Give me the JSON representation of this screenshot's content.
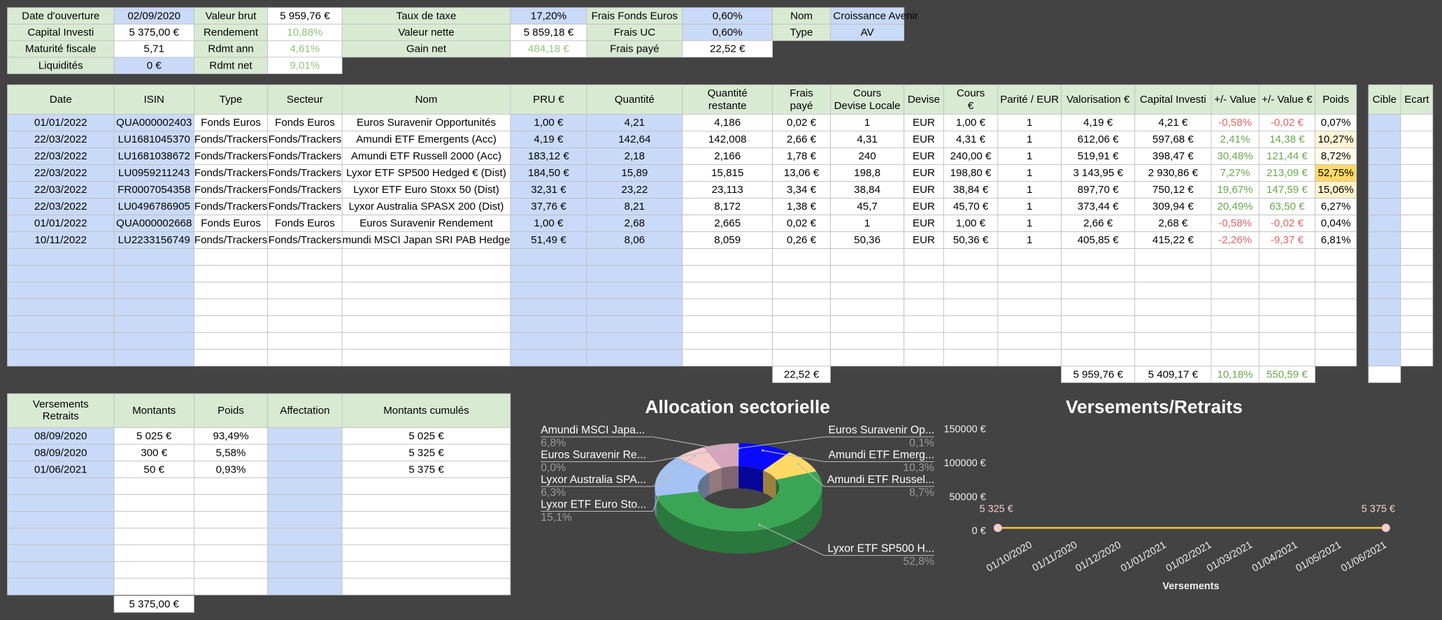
{
  "summary": [
    {
      "labels": [
        "Date d'ouverture",
        "Capital Investi",
        "Maturité fiscale",
        "Liquidités"
      ],
      "values": [
        "02/09/2020",
        "5 375,00 €",
        "5,71",
        "0 €"
      ]
    },
    {
      "labels": [
        "Valeur brut",
        "Rendement",
        "Rdmt ann",
        "Rdmt net"
      ],
      "values": [
        "5 959,76 €",
        "10,88%",
        "4,61%",
        "9,01%"
      ]
    },
    {
      "labels": [
        "Taux de taxe",
        "Valeur nette",
        "Gain net"
      ],
      "values": [
        "17,20%",
        "5 859,18 €",
        "484,18 €"
      ]
    },
    {
      "labels": [
        "Frais Fonds Euros",
        "Frais UC",
        "Frais payé"
      ],
      "values": [
        "0,60%",
        "0,60%",
        "22,52 €"
      ]
    },
    {
      "labels": [
        "Nom",
        "Type"
      ],
      "values": [
        "Croissance Avenir",
        "AV"
      ]
    }
  ],
  "positions": {
    "headers": [
      [
        "Date"
      ],
      [
        "ISIN"
      ],
      [
        "Type"
      ],
      [
        "Secteur"
      ],
      [
        "Nom"
      ],
      [
        "PRU €"
      ],
      [
        "Quantité"
      ],
      [
        "Quantité",
        "restante"
      ],
      [
        "Frais",
        "payé"
      ],
      [
        "Cours",
        "Devise Locale"
      ],
      [
        "Devise"
      ],
      [
        "Cours",
        "€"
      ],
      [
        "Parité / EUR"
      ],
      [
        "Valorisation €"
      ],
      [
        "Capital Investi"
      ],
      [
        "+/- Value"
      ],
      [
        "+/- Value €"
      ],
      [
        "Poids"
      ]
    ],
    "extra_headers": [
      "Cible",
      "Ecart"
    ],
    "rows": [
      [
        "01/01/2022",
        "QUA000002403",
        "Fonds Euros",
        "Fonds Euros",
        "Euros Suravenir Opportunités",
        "1,00 €",
        "4,21",
        "4,186",
        "0,02 €",
        "1",
        "EUR",
        "1,00 €",
        "1",
        "4,19 €",
        "4,21 €",
        "-0,58%",
        "-0,02 €",
        "0,07%"
      ],
      [
        "22/03/2022",
        "LU1681045370",
        "Fonds/Trackers",
        "Fonds/Trackers",
        "Amundi ETF Emergents (Acc)",
        "4,19 €",
        "142,64",
        "142,008",
        "2,66 €",
        "4,31",
        "EUR",
        "4,31 €",
        "1",
        "612,06 €",
        "597,68 €",
        "2,41%",
        "14,38 €",
        "10,27%"
      ],
      [
        "22/03/2022",
        "LU1681038672",
        "Fonds/Trackers",
        "Fonds/Trackers",
        "Amundi ETF Russell 2000 (Acc)",
        "183,12 €",
        "2,18",
        "2,166",
        "1,78 €",
        "240",
        "EUR",
        "240,00 €",
        "1",
        "519,91 €",
        "398,47 €",
        "30,48%",
        "121,44 €",
        "8,72%"
      ],
      [
        "22/03/2022",
        "LU0959211243",
        "Fonds/Trackers",
        "Fonds/Trackers",
        "Lyxor ETF SP500 Hedged € (Dist)",
        "184,50 €",
        "15,89",
        "15,815",
        "13,06 €",
        "198,8",
        "EUR",
        "198,80 €",
        "1",
        "3 143,95 €",
        "2 930,86 €",
        "7,27%",
        "213,09 €",
        "52,75%"
      ],
      [
        "22/03/2022",
        "FR0007054358",
        "Fonds/Trackers",
        "Fonds/Trackers",
        "Lyxor ETF Euro Stoxx 50 (Dist)",
        "32,31 €",
        "23,22",
        "23,113",
        "3,34 €",
        "38,84",
        "EUR",
        "38,84 €",
        "1",
        "897,70 €",
        "750,12 €",
        "19,67%",
        "147,59 €",
        "15,06%"
      ],
      [
        "22/03/2022",
        "LU0496786905",
        "Fonds/Trackers",
        "Fonds/Trackers",
        "Lyxor Australia SPASX 200 (Dist)",
        "37,76 €",
        "8,21",
        "8,172",
        "1,38 €",
        "45,7",
        "EUR",
        "45,70 €",
        "1",
        "373,44 €",
        "309,94 €",
        "20,49%",
        "63,50 €",
        "6,27%"
      ],
      [
        "01/01/2022",
        "QUA000002668",
        "Fonds Euros",
        "Fonds Euros",
        "Euros Suravenir Rendement",
        "1,00 €",
        "2,68",
        "2,665",
        "0,02 €",
        "1",
        "EUR",
        "1,00 €",
        "1",
        "2,66 €",
        "2,68 €",
        "-0,58%",
        "-0,02 €",
        "0,04%"
      ],
      [
        "10/11/2022",
        "LU2233156749",
        "Fonds/Trackers",
        "Fonds/Trackers",
        "mundi MSCI Japan SRI PAB Hedge",
        "51,49 €",
        "8,06",
        "8,059",
        "0,26 €",
        "50,36",
        "EUR",
        "50,36 €",
        "1",
        "405,85 €",
        "415,22 €",
        "-2,26%",
        "-9,37 €",
        "6,81%"
      ]
    ],
    "totals": {
      "frais_paye": "22,52 €",
      "valorisation": "5 959,76 €",
      "capital_investi": "5 409,17 €",
      "plus_value_pct": "10,18%",
      "plus_value_eur": "550,59 €"
    }
  },
  "versements": {
    "headers": [
      [
        "Versements",
        "Retraits"
      ],
      [
        "Montants"
      ],
      [
        "Poids"
      ],
      [
        "Affectation"
      ],
      [
        "Montants cumulés"
      ]
    ],
    "rows": [
      {
        "date": "08/09/2020",
        "montant": "5 025 €",
        "poids": "93,49%",
        "cumul": "5 025 €"
      },
      {
        "date": "08/09/2020",
        "montant": "300 €",
        "poids": "5,58%",
        "cumul": "5 325 €"
      },
      {
        "date": "01/06/2021",
        "montant": "50 €",
        "poids": "0,93%",
        "cumul": "5 375 €"
      }
    ],
    "total": "5 375,00 €"
  },
  "chart_data": [
    {
      "type": "pie",
      "title": "Allocation sectorielle",
      "donut": true,
      "categories": [
        "Euros Suravenir Op...",
        "Amundi ETF Emerg...",
        "Amundi ETF Russel...",
        "Lyxor ETF SP500 H...",
        "Lyxor ETF Euro Sto...",
        "Lyxor Australia SPA...",
        "Euros Suravenir Re...",
        "Amundi MSCI Japa..."
      ],
      "values": [
        0.1,
        10.3,
        8.7,
        52.8,
        15.1,
        6.3,
        0.0,
        6.8
      ],
      "value_labels": [
        "0,1%",
        "10,3%",
        "8,7%",
        "52,8%",
        "15,1%",
        "6,3%",
        "0,0%",
        "6,8%"
      ],
      "colors": [
        "#4285f4",
        "#0a0aff",
        "#ffd966",
        "#3aa655",
        "#a4c2f4",
        "#f4cccc",
        "#ea9999",
        "#d5a6bd"
      ]
    },
    {
      "type": "line",
      "title": "Versements/Retraits",
      "xlabel": "Versements",
      "x": [
        "08/09/2020",
        "01/06/2021"
      ],
      "xlim": [
        "08/09/2020",
        "01/06/2021"
      ],
      "xticks": [
        "01/10/2020",
        "01/11/2020",
        "01/12/2020",
        "01/01/2021",
        "01/02/2021",
        "01/03/2021",
        "01/04/2021",
        "01/05/2021",
        "01/06/2021"
      ],
      "ylim": [
        0,
        150000
      ],
      "yticks": [
        {
          "value": 0,
          "label": "0 €"
        },
        {
          "value": 50000,
          "label": "50000 €"
        },
        {
          "value": 100000,
          "label": "100000 €"
        },
        {
          "value": 150000,
          "label": "150000 €"
        }
      ],
      "grid": false,
      "series": [
        {
          "values": [
            5325,
            5375
          ],
          "value_labels": [
            "5 325 €",
            "5 375 €"
          ],
          "color": "#f1c232",
          "marker_color": "#f4cccc"
        }
      ]
    }
  ]
}
